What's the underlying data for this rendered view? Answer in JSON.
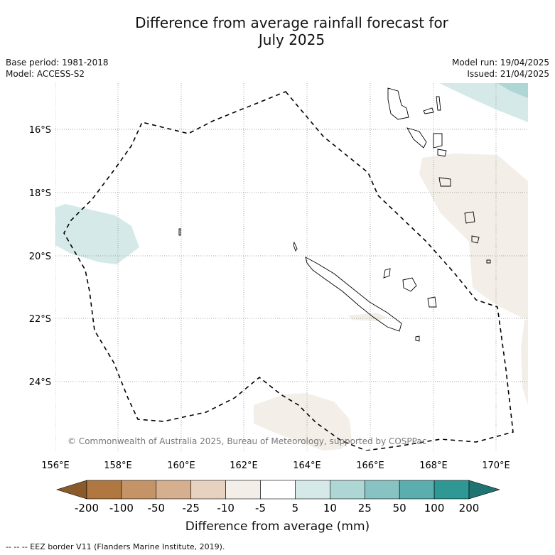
{
  "title": "Difference from average rainfall forecast for",
  "title_line2": "July 2025",
  "base_period": "Base period: 1981-2018",
  "model": "Model: ACCESS-S2",
  "model_run": "Model run: 19/04/2025",
  "issued": "Issued: 21/04/2025",
  "copyright": "© Commonwealth of Australia 2025, Bureau of Meteorology, supported by COSPPac",
  "lat_labels": [
    "16°S",
    "18°S",
    "20°S",
    "22°S",
    "24°S"
  ],
  "lon_labels": [
    "156°E",
    "158°E",
    "160°E",
    "162°E",
    "164°E",
    "166°E",
    "168°E",
    "170°E"
  ],
  "colorbar": {
    "label": "Difference from average (mm)",
    "ticks": [
      "-200",
      "-100",
      "-50",
      "-25",
      "-10",
      "-5",
      "5",
      "10",
      "25",
      "50",
      "100",
      "200"
    ],
    "colors": [
      "#8b5a2b",
      "#b07840",
      "#c49467",
      "#d6b08e",
      "#e6d2bf",
      "#f3efe8",
      "#ffffff",
      "#d5eae8",
      "#aed6d5",
      "#86c3c2",
      "#5aaeae",
      "#2f9794",
      "#1f7370"
    ]
  },
  "footnote": "--  --  -- EEZ border V11 (Flanders Marine Institute, 2019)."
}
